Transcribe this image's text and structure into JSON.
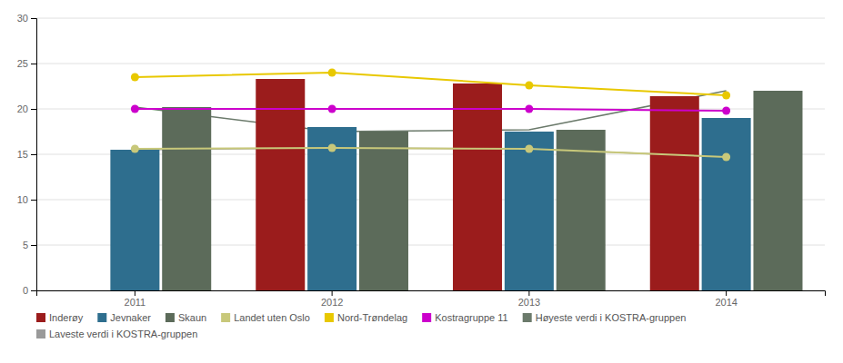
{
  "chart_data": {
    "type": "bar",
    "categories": [
      "2011",
      "2012",
      "2013",
      "2014"
    ],
    "series": [
      {
        "name": "Inderøy",
        "type": "bar",
        "color": "#9B1C1C",
        "values": [
          null,
          23.3,
          22.8,
          21.4
        ]
      },
      {
        "name": "Jevnaker",
        "type": "bar",
        "color": "#2E6E8E",
        "values": [
          15.5,
          18.0,
          17.5,
          19.0
        ]
      },
      {
        "name": "Skaun",
        "type": "bar",
        "color": "#5C6B5A",
        "values": [
          20.2,
          17.5,
          17.7,
          22.0
        ]
      },
      {
        "name": "Landet uten Oslo",
        "type": "line",
        "marker": "circle",
        "color": "#C8C87A",
        "values": [
          15.6,
          15.7,
          15.6,
          14.7
        ]
      },
      {
        "name": "Nord-Trøndelag",
        "type": "line",
        "marker": "circle",
        "color": "#E8C800",
        "values": [
          23.5,
          24.0,
          22.6,
          21.5
        ]
      },
      {
        "name": "Kostragruppe 11",
        "type": "line",
        "marker": "circle",
        "color": "#CC00CC",
        "values": [
          20.0,
          20.0,
          20.0,
          19.8
        ]
      },
      {
        "name": "Høyeste verdi i KOSTRA-gruppen",
        "type": "line",
        "color": "#6B7A6B",
        "values": [
          20.2,
          17.5,
          17.7,
          22.0
        ]
      },
      {
        "name": "Laveste verdi i KOSTRA-gruppen",
        "type": "line",
        "color": "#9A9A9A",
        "values": [
          15.5,
          15.7,
          15.6,
          14.7
        ]
      }
    ],
    "ylim": [
      0,
      30
    ],
    "yticks": [
      0,
      5,
      10,
      15,
      20,
      25,
      30
    ],
    "grid": true,
    "legend": "bottom"
  }
}
